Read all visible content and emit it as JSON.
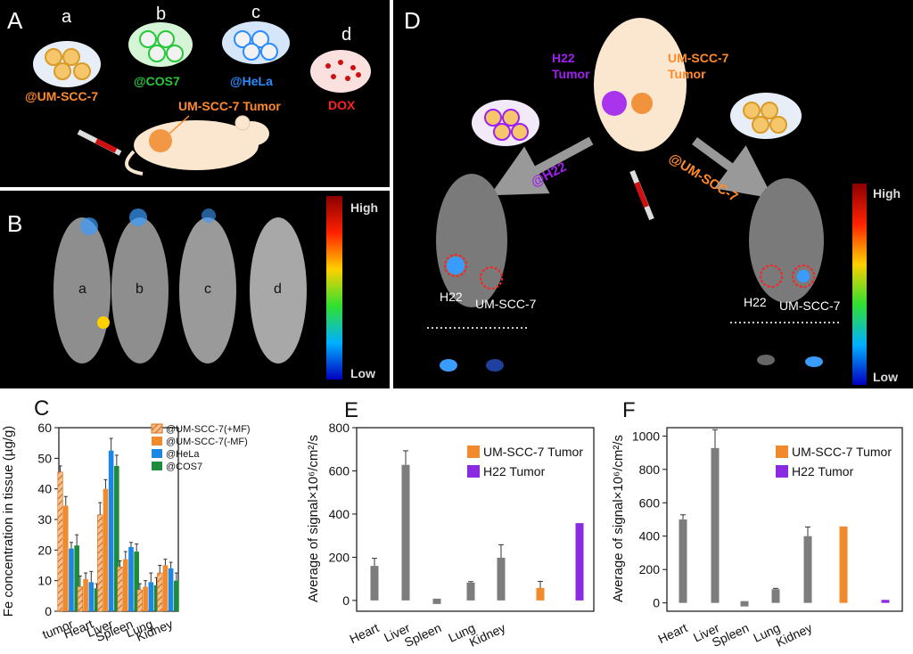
{
  "panel_labels": {
    "A": "A",
    "B": "B",
    "C": "C",
    "D": "D",
    "E": "E",
    "F": "F"
  },
  "panel_a": {
    "groups": [
      {
        "letter": "a",
        "label": "@UM-SCC-7",
        "color": "#ff8a2a"
      },
      {
        "letter": "b",
        "label": "@COS7",
        "color": "#28c83c"
      },
      {
        "letter": "c",
        "label": "@HeLa",
        "color": "#2a8cff"
      },
      {
        "letter": "d",
        "label": "DOX",
        "color": "#ff2020"
      }
    ],
    "tumor_label": "UM-SCC-7 Tumor"
  },
  "panel_b": {
    "mice": [
      "a",
      "b",
      "c",
      "d"
    ],
    "scale_high": "High",
    "scale_low": "Low"
  },
  "panel_d": {
    "h22_tumor": "H22\nTumor",
    "um_tumor": "UM-SCC-7\nTumor",
    "arrow_left_label": "@H22",
    "arrow_right_label": "@UM-SCC-7",
    "left_h22": "H22",
    "left_um": "UM-SCC-7",
    "right_h22": "H22",
    "right_um": "UM-SCC-7",
    "scale_high": "High",
    "scale_low": "Low"
  },
  "chart_data": [
    {
      "id": "C",
      "type": "bar",
      "categories": [
        "tumor",
        "Heart",
        "Liver",
        "Spleen",
        "Lung",
        "Kidney"
      ],
      "ylabel": "Fe concentration in tissue (µg/g)",
      "ylim": [
        0,
        60
      ],
      "yticks": [
        0,
        10,
        20,
        30,
        40,
        50,
        60
      ],
      "series": [
        {
          "name": "@UM-SCC-7(+MF)",
          "color": "#f08a2c",
          "hatch": true,
          "values": [
            45.5,
            8,
            31.5,
            14.5,
            7,
            12.5
          ],
          "errors": [
            2,
            3.5,
            4,
            2,
            2,
            2.5
          ]
        },
        {
          "name": "@UM-SCC-7(-MF)",
          "color": "#f08a2c",
          "hatch": false,
          "values": [
            34.5,
            10.5,
            40,
            17,
            8,
            15
          ],
          "errors": [
            3,
            2,
            3,
            2.5,
            2,
            2
          ]
        },
        {
          "name": "@HeLa",
          "color": "#1c86e4",
          "hatch": false,
          "values": [
            20.5,
            9.5,
            52.5,
            21,
            9.5,
            14
          ],
          "errors": [
            2,
            3.5,
            4,
            1.5,
            3,
            2
          ]
        },
        {
          "name": "@COS7",
          "color": "#1c8c3c",
          "hatch": false,
          "values": [
            21.5,
            7.5,
            47.5,
            19.5,
            8.5,
            10
          ],
          "errors": [
            3.5,
            1.5,
            3.5,
            2.5,
            2.5,
            2.5
          ]
        }
      ]
    },
    {
      "id": "E",
      "type": "bar",
      "categories": [
        "Heart",
        "Liver",
        "Spleen",
        "Lung",
        "Kidney"
      ],
      "ylabel": "Average of signal×10⁶/cm²/s",
      "ylim": [
        -50,
        800
      ],
      "yticks": [
        0,
        200,
        400,
        600,
        800
      ],
      "gray_values": [
        160,
        628,
        0,
        82,
        198
      ],
      "gray_errors": [
        35,
        65,
        0,
        5,
        60
      ],
      "tumor_values": [
        {
          "name": "UM-SCC-7 Tumor",
          "color": "#f08a2c",
          "value": 58,
          "error": 30
        },
        {
          "name": "H22 Tumor",
          "color": "#8a2be2",
          "value": 358,
          "error": 0
        }
      ],
      "legend": [
        "UM-SCC-7 Tumor",
        "H22 Tumor"
      ]
    },
    {
      "id": "F",
      "type": "bar",
      "categories": [
        "Heart",
        "Liver",
        "Spleen",
        "Lung",
        "Kidney"
      ],
      "ylabel": "Average of signal×10⁶/cm²/s",
      "ylim": [
        -50,
        1050
      ],
      "yticks": [
        0,
        200,
        400,
        600,
        800,
        1000
      ],
      "gray_values": [
        500,
        928,
        0,
        82,
        400
      ],
      "gray_errors": [
        28,
        110,
        0,
        5,
        55
      ],
      "tumor_values": [
        {
          "name": "UM-SCC-7 Tumor",
          "color": "#f08a2c",
          "value": 458,
          "error": 0
        },
        {
          "name": "H22 Tumor",
          "color": "#8a2be2",
          "value": 18,
          "error": 0
        }
      ],
      "legend": [
        "UM-SCC-7 Tumor",
        "H22 Tumor"
      ]
    }
  ]
}
